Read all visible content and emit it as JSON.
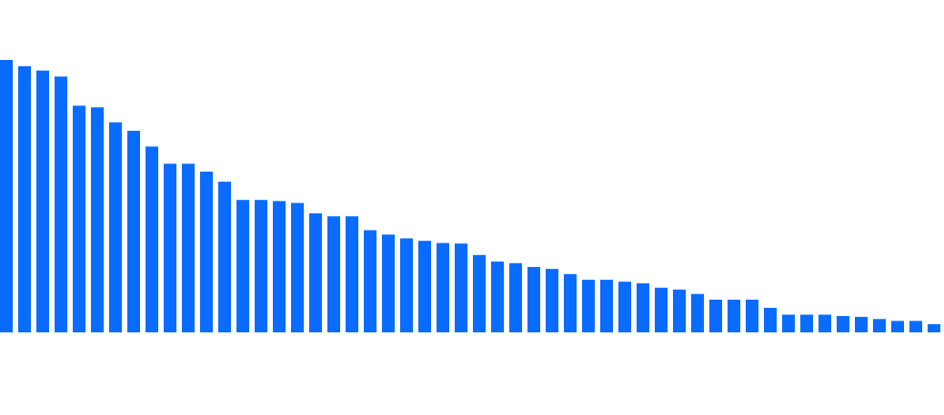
{
  "chart_data": {
    "type": "bar",
    "bar_color": "#0a6cff",
    "ylim": [
      0,
      1
    ],
    "grid": false,
    "legend": "none",
    "values": [
      1.0,
      0.977,
      0.961,
      0.939,
      0.832,
      0.826,
      0.771,
      0.74,
      0.682,
      0.619,
      0.619,
      0.59,
      0.553,
      0.486,
      0.486,
      0.482,
      0.475,
      0.437,
      0.426,
      0.426,
      0.375,
      0.359,
      0.345,
      0.336,
      0.328,
      0.326,
      0.284,
      0.26,
      0.254,
      0.24,
      0.233,
      0.214,
      0.193,
      0.193,
      0.186,
      0.18,
      0.164,
      0.157,
      0.141,
      0.12,
      0.12,
      0.12,
      0.09,
      0.065,
      0.065,
      0.065,
      0.06,
      0.057,
      0.049,
      0.042,
      0.042,
      0.03
    ]
  }
}
